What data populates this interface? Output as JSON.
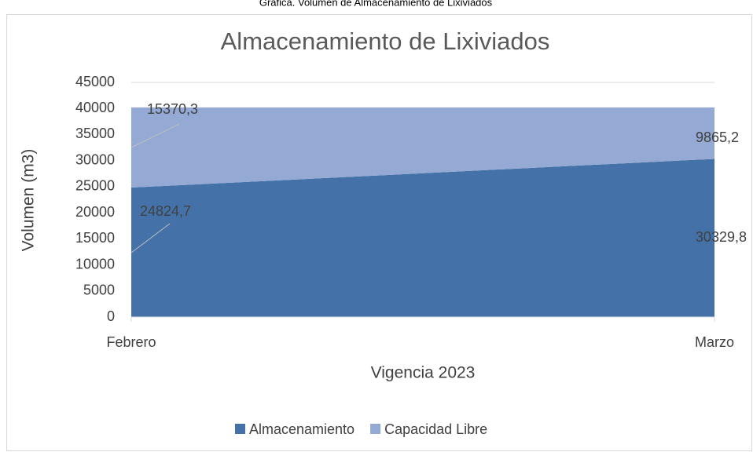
{
  "caption": "Gráfica. Volumen de Almacenamiento de Lixiviados",
  "chart_data": {
    "type": "stacked_area",
    "title": "Almacenamiento de Lixiviados",
    "x_label": "Vigencia 2023",
    "y_label": "Volumen (m3)",
    "categories": [
      "Febrero",
      "Marzo"
    ],
    "series": [
      {
        "name": "Almacenamiento",
        "color": "#4472a8",
        "values": [
          24824.7,
          30329.8
        ],
        "value_labels": [
          "24824,7",
          "30329,8"
        ]
      },
      {
        "name": "Capacidad Libre",
        "color": "#94a9d3",
        "values": [
          15370.3,
          9865.2
        ],
        "value_labels": [
          "15370,3",
          "9865,2"
        ]
      }
    ],
    "ylim": [
      0,
      45000
    ],
    "yticks": [
      0,
      5000,
      10000,
      15000,
      20000,
      25000,
      30000,
      35000,
      40000,
      45000
    ],
    "grid": true,
    "legend": "bottom"
  }
}
